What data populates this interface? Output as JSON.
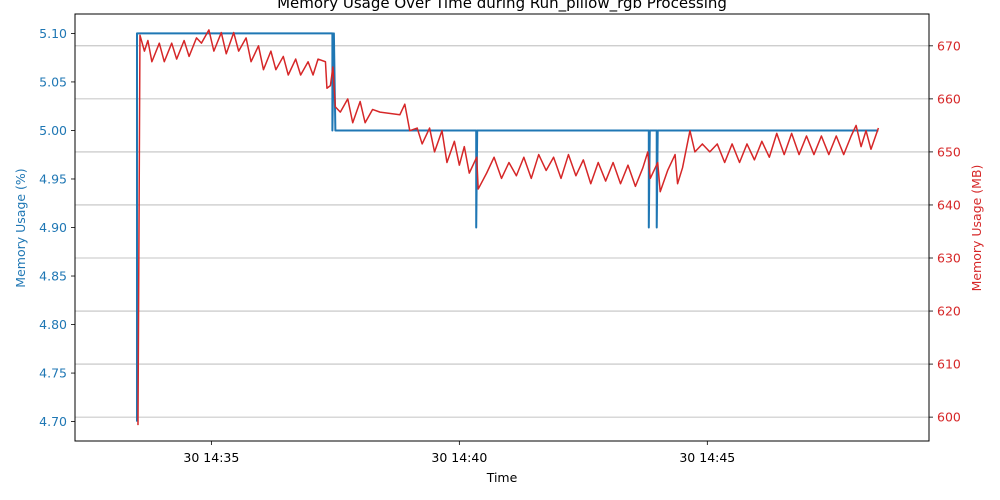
{
  "chart_data": {
    "type": "line",
    "title": "Memory Usage Over Time during Run_pillow_rgb Processing",
    "xlabel": "Time",
    "ylabel_left": "Memory Usage (%)",
    "ylabel_right": "Memory Usage (MB)",
    "x_ticks": [
      "30 14:35",
      "30 14:40",
      "30 14:45"
    ],
    "x_tick_minutes": [
      35,
      40,
      45
    ],
    "xlim_minutes": [
      32.25,
      49.47
    ],
    "ylim_left": [
      4.68,
      5.12
    ],
    "ylim_right": [
      595.5,
      676.0
    ],
    "y_ticks_left": [
      "4.70",
      "4.75",
      "4.80",
      "4.85",
      "4.90",
      "4.95",
      "5.00",
      "5.05",
      "5.10"
    ],
    "y_ticks_right": [
      "600",
      "610",
      "620",
      "630",
      "640",
      "650",
      "660",
      "670"
    ],
    "grid": "horizontal (right axis)",
    "colors": {
      "percent": "#1f77b4",
      "mb": "#d62728",
      "grid": "#b0b0b0"
    },
    "series": [
      {
        "axis": "left",
        "points": [
          [
            33.5,
            4.7
          ],
          [
            33.5,
            5.1
          ],
          [
            37.44,
            5.1
          ],
          [
            37.44,
            5.0
          ],
          [
            37.47,
            5.1
          ],
          [
            37.5,
            5.0
          ],
          [
            40.34,
            5.0
          ],
          [
            40.34,
            4.9
          ],
          [
            40.36,
            5.0
          ],
          [
            43.82,
            5.0
          ],
          [
            43.82,
            4.9
          ],
          [
            43.84,
            5.0
          ],
          [
            43.98,
            5.0
          ],
          [
            43.98,
            4.9
          ],
          [
            44.0,
            5.0
          ],
          [
            48.45,
            5.0
          ]
        ]
      },
      {
        "axis": "right",
        "points": [
          [
            33.52,
            598.5
          ],
          [
            33.56,
            672.0
          ],
          [
            33.65,
            669.0
          ],
          [
            33.72,
            671.0
          ],
          [
            33.8,
            667.0
          ],
          [
            33.95,
            670.5
          ],
          [
            34.05,
            667.0
          ],
          [
            34.2,
            670.5
          ],
          [
            34.3,
            667.5
          ],
          [
            34.45,
            671.0
          ],
          [
            34.55,
            668.0
          ],
          [
            34.7,
            671.5
          ],
          [
            34.8,
            670.5
          ],
          [
            34.95,
            673.0
          ],
          [
            35.05,
            669.0
          ],
          [
            35.2,
            672.5
          ],
          [
            35.3,
            668.5
          ],
          [
            35.45,
            672.5
          ],
          [
            35.55,
            669.0
          ],
          [
            35.7,
            671.5
          ],
          [
            35.8,
            667.0
          ],
          [
            35.95,
            670.0
          ],
          [
            36.05,
            665.5
          ],
          [
            36.2,
            669.0
          ],
          [
            36.3,
            665.5
          ],
          [
            36.45,
            668.0
          ],
          [
            36.55,
            664.5
          ],
          [
            36.7,
            667.5
          ],
          [
            36.8,
            664.5
          ],
          [
            36.95,
            667.0
          ],
          [
            37.05,
            664.5
          ],
          [
            37.15,
            667.5
          ],
          [
            37.3,
            667.0
          ],
          [
            37.33,
            662.0
          ],
          [
            37.4,
            662.5
          ],
          [
            37.45,
            666.0
          ],
          [
            37.5,
            658.5
          ],
          [
            37.6,
            657.5
          ],
          [
            37.75,
            660.0
          ],
          [
            37.85,
            655.5
          ],
          [
            38.0,
            659.5
          ],
          [
            38.1,
            655.5
          ],
          [
            38.25,
            658.0
          ],
          [
            38.4,
            657.5
          ],
          [
            38.8,
            657.0
          ],
          [
            38.9,
            659.0
          ],
          [
            39.0,
            654.0
          ],
          [
            39.15,
            654.5
          ],
          [
            39.25,
            651.5
          ],
          [
            39.4,
            654.5
          ],
          [
            39.5,
            650.0
          ],
          [
            39.65,
            654.0
          ],
          [
            39.75,
            648.0
          ],
          [
            39.9,
            652.0
          ],
          [
            40.0,
            647.5
          ],
          [
            40.1,
            651.0
          ],
          [
            40.2,
            646.0
          ],
          [
            40.35,
            649.0
          ],
          [
            40.38,
            643.0
          ],
          [
            40.55,
            646.0
          ],
          [
            40.7,
            649.0
          ],
          [
            40.85,
            645.0
          ],
          [
            41.0,
            648.0
          ],
          [
            41.15,
            645.5
          ],
          [
            41.3,
            649.0
          ],
          [
            41.45,
            645.0
          ],
          [
            41.6,
            649.5
          ],
          [
            41.75,
            646.5
          ],
          [
            41.9,
            649.0
          ],
          [
            42.05,
            645.0
          ],
          [
            42.2,
            649.5
          ],
          [
            42.35,
            645.5
          ],
          [
            42.5,
            648.5
          ],
          [
            42.65,
            644.0
          ],
          [
            42.8,
            648.0
          ],
          [
            42.95,
            644.5
          ],
          [
            43.1,
            648.0
          ],
          [
            43.25,
            644.0
          ],
          [
            43.4,
            647.5
          ],
          [
            43.55,
            643.5
          ],
          [
            43.7,
            647.0
          ],
          [
            43.8,
            650.0
          ],
          [
            43.85,
            645.0
          ],
          [
            44.0,
            648.0
          ],
          [
            44.05,
            642.5
          ],
          [
            44.2,
            646.5
          ],
          [
            44.35,
            649.5
          ],
          [
            44.4,
            644.0
          ],
          [
            44.5,
            647.0
          ],
          [
            44.65,
            654.0
          ],
          [
            44.75,
            650.0
          ],
          [
            44.9,
            651.5
          ],
          [
            45.05,
            650.0
          ],
          [
            45.2,
            651.5
          ],
          [
            45.35,
            648.0
          ],
          [
            45.5,
            651.5
          ],
          [
            45.65,
            648.0
          ],
          [
            45.8,
            651.5
          ],
          [
            45.95,
            648.5
          ],
          [
            46.1,
            652.0
          ],
          [
            46.25,
            649.0
          ],
          [
            46.4,
            653.5
          ],
          [
            46.55,
            649.5
          ],
          [
            46.7,
            653.5
          ],
          [
            46.85,
            649.5
          ],
          [
            47.0,
            653.0
          ],
          [
            47.15,
            649.5
          ],
          [
            47.3,
            653.0
          ],
          [
            47.45,
            649.5
          ],
          [
            47.6,
            653.0
          ],
          [
            47.75,
            649.5
          ],
          [
            47.9,
            653.0
          ],
          [
            48.0,
            655.0
          ],
          [
            48.1,
            651.0
          ],
          [
            48.2,
            654.0
          ],
          [
            48.3,
            650.5
          ],
          [
            48.45,
            654.5
          ]
        ]
      }
    ]
  }
}
